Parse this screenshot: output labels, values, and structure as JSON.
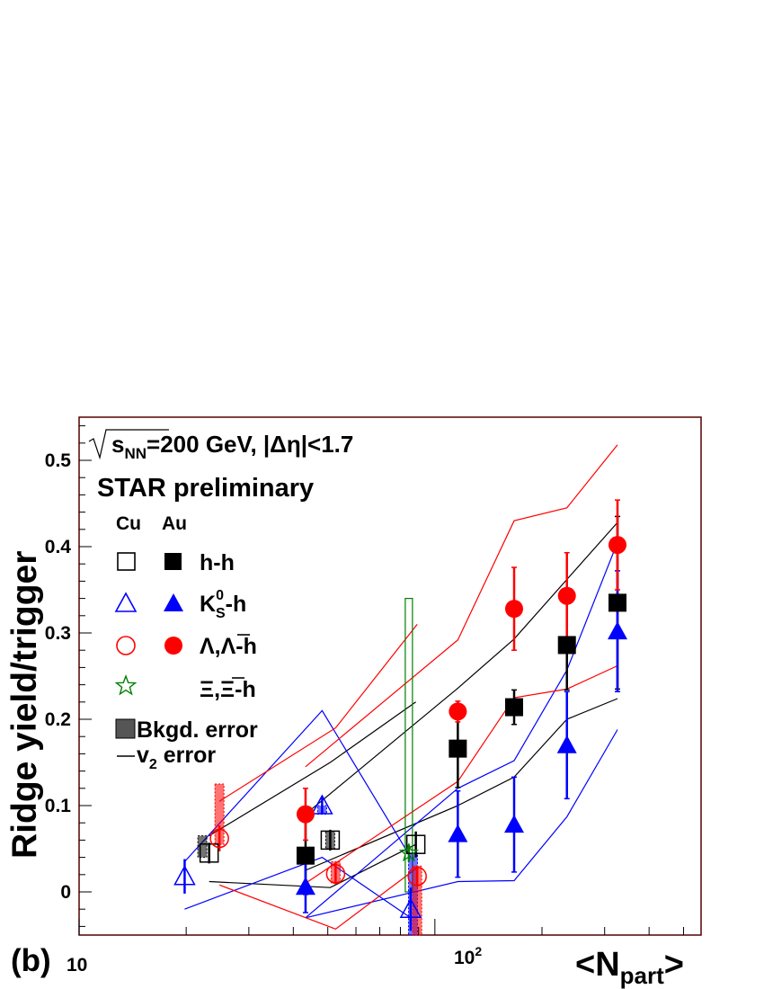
{
  "chart_data": {
    "type": "scatter",
    "panel_label": "(b)",
    "energy_label_base": "s",
    "energy_label_sub": "NN",
    "energy_label_value": "=200 GeV, ",
    "eta_cut": "|Δη|<1.7",
    "preliminary_label": "STAR preliminary",
    "ylabel": "Ridge yield/trigger",
    "xlabel_base": "<N",
    "xlabel_sub": "part",
    "xlabel_close": ">",
    "xscale": "log",
    "xlim": [
      10,
      560
    ],
    "ylim": [
      -0.05,
      0.55
    ],
    "y_ticks": [
      0,
      0.1,
      0.2,
      0.3,
      0.4,
      0.5
    ],
    "y_tick_labels": [
      "0",
      "0.1",
      "0.2",
      "0.3",
      "0.4",
      "0.5"
    ],
    "x_tick_label_10": "10",
    "x_tick_label_100_base": "10",
    "x_tick_label_100_exp": "2",
    "legend": {
      "col_cu": "Cu",
      "col_au": "Au",
      "entries": [
        {
          "id": "hh",
          "label": "h-h"
        },
        {
          "id": "k0s",
          "label_base": "K",
          "label_sup": "0",
          "label_sub": "S",
          "label_tail": "-h"
        },
        {
          "id": "lambda",
          "label": "Λ,Λ-h"
        },
        {
          "id": "xi",
          "label": "Ξ,Ξ-h"
        }
      ],
      "bkgd_label": "Bkgd. error",
      "v2_label_base": "v",
      "v2_label_sub": "2",
      "v2_label_tail": " error"
    },
    "colors": {
      "hh": "#000000",
      "k0s": "#0000ff",
      "lambda": "#ff0000",
      "xi": "#008000",
      "frame": "#550000"
    },
    "series": [
      {
        "name": "Cu h-h",
        "system": "Cu",
        "marker": "open-square",
        "color": "#000000",
        "points": [
          {
            "x": 23.2,
            "y": 0.045,
            "err": 0.012
          },
          {
            "x": 50.8,
            "y": 0.06,
            "err": 0.012
          },
          {
            "x": 88.4,
            "y": 0.055,
            "err": 0.015
          }
        ]
      },
      {
        "name": "Au h-h",
        "system": "Au",
        "marker": "filled-square",
        "color": "#000000",
        "points": [
          {
            "x": 43.3,
            "y": 0.042,
            "err": 0.045
          },
          {
            "x": 116,
            "y": 0.166,
            "err": 0.045
          },
          {
            "x": 167,
            "y": 0.214,
            "err": 0.02
          },
          {
            "x": 235,
            "y": 0.286,
            "err": 0.052
          },
          {
            "x": 326,
            "y": 0.335,
            "err": 0.1
          }
        ]
      },
      {
        "name": "Cu K0S-h",
        "system": "Cu",
        "marker": "open-triangle",
        "color": "#0000ff",
        "points": [
          {
            "x": 19.8,
            "y": 0.018,
            "err": 0.02
          },
          {
            "x": 48.2,
            "y": 0.1,
            "err": 0.01
          },
          {
            "x": 85.5,
            "y": -0.02,
            "err": 0.025
          }
        ]
      },
      {
        "name": "Au K0S-h",
        "system": "Au",
        "marker": "filled-triangle",
        "color": "#0000ff",
        "points": [
          {
            "x": 43.3,
            "y": 0.006,
            "err": 0.03
          },
          {
            "x": 116,
            "y": 0.067,
            "err": 0.05
          },
          {
            "x": 167,
            "y": 0.078,
            "err": 0.055
          },
          {
            "x": 235,
            "y": 0.17,
            "err": 0.062
          },
          {
            "x": 326,
            "y": 0.302,
            "err": 0.07
          }
        ]
      },
      {
        "name": "Cu Λ,Λ-h",
        "system": "Cu",
        "marker": "open-circle",
        "color": "#ff0000",
        "points": [
          {
            "x": 24.8,
            "y": 0.062,
            "err": 0.015
          },
          {
            "x": 52.6,
            "y": 0.021,
            "err": 0.012
          },
          {
            "x": 89.2,
            "y": 0.018,
            "err": 0.012
          }
        ]
      },
      {
        "name": "Au Λ,Λ-h",
        "system": "Au",
        "marker": "filled-circle",
        "color": "#ff0000",
        "points": [
          {
            "x": 43.3,
            "y": 0.09,
            "err": 0.03
          },
          {
            "x": 116,
            "y": 0.209,
            "err": 0.012
          },
          {
            "x": 167,
            "y": 0.328,
            "err": 0.048
          },
          {
            "x": 235,
            "y": 0.343,
            "err": 0.05
          },
          {
            "x": 326,
            "y": 0.402,
            "err": 0.052
          }
        ]
      },
      {
        "name": "Cu Ξ,Ξ-h",
        "system": "Cu",
        "marker": "open-star",
        "color": "#008000",
        "points": [
          {
            "x": 84.5,
            "y": 0.045,
            "err": 0.01
          }
        ]
      }
    ],
    "bkgd_error_bands": [
      {
        "color": "#000000",
        "x": 22.2,
        "ymin": 0.04,
        "ymax": 0.065
      },
      {
        "color": "#0000ff",
        "x": 48.2,
        "ymin": 0.09,
        "ymax": 0.1
      },
      {
        "color": "#000000",
        "x": 50.8,
        "ymin": 0.05,
        "ymax": 0.07
      },
      {
        "color": "#ff0000",
        "x": 24.8,
        "ymin": 0.055,
        "ymax": 0.125
      },
      {
        "color": "#ff0000",
        "x": 52.6,
        "ymin": 0.01,
        "ymax": 0.035
      },
      {
        "color": "#0000ff",
        "x": 86.8,
        "ymin": -0.05,
        "ymax": 0.045
      },
      {
        "color": "#ff0000",
        "x": 89.2,
        "ymin": -0.05,
        "ymax": 0.03
      }
    ],
    "green_syst_box": {
      "x": 84.5,
      "ymin": 0,
      "ymax": 0.34
    },
    "v2_error_bands": [
      {
        "name": "Cu h-h upper",
        "color": "#000000",
        "x": [
          23.2,
          50.8,
          88.4
        ],
        "y": [
          0.065,
          0.15,
          0.22
        ]
      },
      {
        "name": "Cu h-h lower",
        "color": "#000000",
        "x": [
          23.2,
          50.8,
          88.4
        ],
        "y": [
          0.012,
          0.005,
          0.055
        ]
      },
      {
        "name": "Au h-h upper",
        "color": "#000000",
        "x": [
          43.3,
          116,
          167,
          235,
          326
        ],
        "y": [
          0.09,
          0.236,
          0.293,
          0.362,
          0.428
        ]
      },
      {
        "name": "Au h-h lower",
        "color": "#000000",
        "x": [
          43.3,
          116,
          167,
          235,
          326
        ],
        "y": [
          0.025,
          0.1,
          0.133,
          0.2,
          0.224
        ]
      },
      {
        "name": "Cu K0S-h upper",
        "color": "#0000ff",
        "x": [
          19.8,
          48.2,
          85.5
        ],
        "y": [
          0.035,
          0.21,
          0.04
        ]
      },
      {
        "name": "Cu K0S-h lower",
        "color": "#0000ff",
        "x": [
          19.8,
          48.2,
          85.5
        ],
        "y": [
          -0.02,
          0.04,
          -0.03
        ]
      },
      {
        "name": "Au K0S-h upper",
        "color": "#0000ff",
        "x": [
          43.3,
          116,
          167,
          235,
          326
        ],
        "y": [
          -0.03,
          0.12,
          0.152,
          0.257,
          0.405
        ]
      },
      {
        "name": "Au K0S-h lower",
        "color": "#0000ff",
        "x": [
          43.3,
          116,
          167,
          235,
          326
        ],
        "y": [
          -0.03,
          0.012,
          0.013,
          0.087,
          0.188
        ]
      },
      {
        "name": "Cu Λ-h upper",
        "color": "#ff0000",
        "x": [
          24.8,
          52.6,
          89.2
        ],
        "y": [
          0.105,
          0.19,
          0.31
        ]
      },
      {
        "name": "Cu Λ-h lower",
        "color": "#ff0000",
        "x": [
          24.8,
          52.6,
          89.2
        ],
        "y": [
          0.008,
          -0.043,
          0.028
        ]
      },
      {
        "name": "Au Λ-h upper",
        "color": "#ff0000",
        "x": [
          43.3,
          116,
          167,
          235,
          326
        ],
        "y": [
          0.145,
          0.292,
          0.43,
          0.445,
          0.518
        ]
      },
      {
        "name": "Au Λ-h lower",
        "color": "#ff0000",
        "x": [
          43.3,
          116,
          167,
          235,
          326
        ],
        "y": [
          0.01,
          0.128,
          0.225,
          0.235,
          0.262
        ]
      }
    ]
  }
}
